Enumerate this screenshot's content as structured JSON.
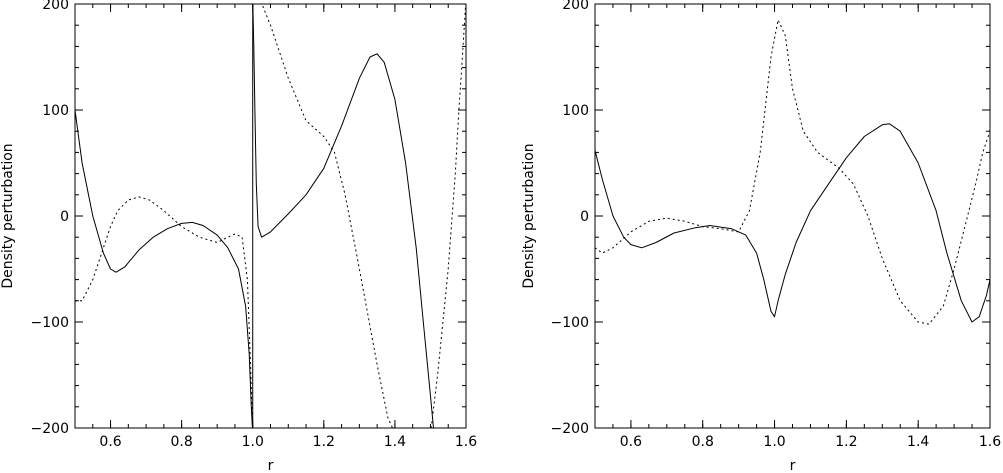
{
  "chart_data": [
    {
      "type": "line",
      "title": "",
      "xlabel": "r",
      "ylabel": "Density  perturbation",
      "xlim": [
        0.5,
        1.6
      ],
      "ylim": [
        -200,
        200
      ],
      "xticks": [
        0.6,
        0.8,
        1.0,
        1.2,
        1.4,
        1.6
      ],
      "xtick_labels": [
        "0.6",
        "0.8",
        "1.0",
        "1.2",
        "1.4",
        "1.6"
      ],
      "yticks": [
        200,
        100,
        0,
        -100,
        -200
      ],
      "ytick_labels": [
        "200",
        "100",
        "0",
        "−100",
        "−200"
      ],
      "grid": false,
      "legend": "none",
      "vlines": [
        1.0
      ],
      "series": [
        {
          "style": "solid",
          "segments": [
            [
              [
                0.5,
                100
              ],
              [
                0.52,
                50
              ],
              [
                0.55,
                0
              ],
              [
                0.58,
                -35
              ],
              [
                0.6,
                -50
              ],
              [
                0.615,
                -53
              ],
              [
                0.64,
                -48
              ],
              [
                0.68,
                -32
              ],
              [
                0.72,
                -20
              ],
              [
                0.76,
                -12
              ],
              [
                0.8,
                -7
              ],
              [
                0.83,
                -6
              ],
              [
                0.86,
                -9
              ],
              [
                0.9,
                -18
              ],
              [
                0.93,
                -30
              ],
              [
                0.96,
                -50
              ],
              [
                0.98,
                -85
              ],
              [
                0.99,
                -130
              ],
              [
                0.996,
                -180
              ],
              [
                1.0,
                -205
              ]
            ],
            [
              [
                1.0,
                205
              ],
              [
                1.003,
                160
              ],
              [
                1.006,
                100
              ],
              [
                1.01,
                30
              ],
              [
                1.015,
                -10
              ],
              [
                1.025,
                -20
              ],
              [
                1.05,
                -15
              ],
              [
                1.1,
                2
              ],
              [
                1.15,
                20
              ],
              [
                1.2,
                45
              ],
              [
                1.25,
                85
              ],
              [
                1.3,
                130
              ],
              [
                1.33,
                150
              ],
              [
                1.35,
                153
              ],
              [
                1.37,
                145
              ],
              [
                1.4,
                110
              ],
              [
                1.43,
                50
              ],
              [
                1.46,
                -30
              ],
              [
                1.48,
                -100
              ],
              [
                1.5,
                -170
              ],
              [
                1.51,
                -205
              ]
            ]
          ]
        },
        {
          "style": "dotted",
          "segments": [
            [
              [
                0.5,
                -80
              ],
              [
                0.52,
                -80
              ],
              [
                0.55,
                -60
              ],
              [
                0.58,
                -30
              ],
              [
                0.6,
                -10
              ],
              [
                0.62,
                5
              ],
              [
                0.65,
                15
              ],
              [
                0.68,
                18
              ],
              [
                0.71,
                15
              ],
              [
                0.75,
                5
              ],
              [
                0.8,
                -10
              ],
              [
                0.85,
                -20
              ],
              [
                0.9,
                -25
              ],
              [
                0.93,
                -20
              ],
              [
                0.95,
                -17
              ],
              [
                0.97,
                -20
              ],
              [
                0.985,
                -60
              ],
              [
                0.995,
                -150
              ],
              [
                1.0,
                -205
              ]
            ],
            [
              [
                1.0,
                205
              ],
              [
                1.01,
                205
              ],
              [
                1.02,
                205
              ],
              [
                1.05,
                180
              ],
              [
                1.1,
                130
              ],
              [
                1.15,
                90
              ],
              [
                1.2,
                75
              ],
              [
                1.23,
                60
              ],
              [
                1.26,
                20
              ],
              [
                1.3,
                -50
              ],
              [
                1.35,
                -140
              ],
              [
                1.38,
                -190
              ],
              [
                1.4,
                -205
              ]
            ],
            [
              [
                1.5,
                -205
              ],
              [
                1.52,
                -150
              ],
              [
                1.55,
                -50
              ],
              [
                1.57,
                40
              ],
              [
                1.58,
                100
              ],
              [
                1.59,
                150
              ],
              [
                1.6,
                205
              ]
            ]
          ]
        }
      ]
    },
    {
      "type": "line",
      "title": "",
      "xlabel": "r",
      "ylabel": "Density  perturbation",
      "xlim": [
        0.5,
        1.6
      ],
      "ylim": [
        -200,
        200
      ],
      "xticks": [
        0.6,
        0.8,
        1.0,
        1.2,
        1.4,
        1.6
      ],
      "xtick_labels": [
        "0.6",
        "0.8",
        "1.0",
        "1.2",
        "1.4",
        "1.6"
      ],
      "yticks": [
        200,
        100,
        0,
        -100,
        -200
      ],
      "ytick_labels": [
        "200",
        "100",
        "0",
        "−100",
        "−200"
      ],
      "grid": false,
      "legend": "none",
      "vlines": [],
      "series": [
        {
          "style": "solid",
          "segments": [
            [
              [
                0.5,
                62
              ],
              [
                0.52,
                35
              ],
              [
                0.55,
                0
              ],
              [
                0.58,
                -20
              ],
              [
                0.6,
                -27
              ],
              [
                0.63,
                -30
              ],
              [
                0.67,
                -25
              ],
              [
                0.72,
                -16
              ],
              [
                0.78,
                -11
              ],
              [
                0.82,
                -9
              ],
              [
                0.88,
                -12
              ],
              [
                0.92,
                -18
              ],
              [
                0.95,
                -35
              ],
              [
                0.97,
                -60
              ],
              [
                0.99,
                -90
              ],
              [
                1.0,
                -95
              ],
              [
                1.01,
                -80
              ],
              [
                1.03,
                -55
              ],
              [
                1.06,
                -25
              ],
              [
                1.1,
                5
              ],
              [
                1.15,
                30
              ],
              [
                1.2,
                55
              ],
              [
                1.25,
                75
              ],
              [
                1.3,
                86
              ],
              [
                1.32,
                87
              ],
              [
                1.35,
                80
              ],
              [
                1.4,
                50
              ],
              [
                1.45,
                5
              ],
              [
                1.48,
                -35
              ],
              [
                1.52,
                -80
              ],
              [
                1.55,
                -100
              ],
              [
                1.57,
                -95
              ],
              [
                1.59,
                -75
              ],
              [
                1.6,
                -60
              ]
            ]
          ]
        },
        {
          "style": "dotted",
          "segments": [
            [
              [
                0.5,
                -30
              ],
              [
                0.52,
                -35
              ],
              [
                0.55,
                -30
              ],
              [
                0.6,
                -15
              ],
              [
                0.65,
                -5
              ],
              [
                0.7,
                -2
              ],
              [
                0.75,
                -5
              ],
              [
                0.8,
                -10
              ],
              [
                0.85,
                -12
              ],
              [
                0.9,
                -15
              ],
              [
                0.93,
                5
              ],
              [
                0.96,
                60
              ],
              [
                0.99,
                150
              ],
              [
                1.01,
                185
              ],
              [
                1.03,
                170
              ],
              [
                1.05,
                120
              ],
              [
                1.08,
                80
              ],
              [
                1.12,
                60
              ],
              [
                1.18,
                45
              ],
              [
                1.22,
                30
              ],
              [
                1.26,
                0
              ],
              [
                1.3,
                -40
              ],
              [
                1.35,
                -80
              ],
              [
                1.4,
                -100
              ],
              [
                1.43,
                -102
              ],
              [
                1.47,
                -85
              ],
              [
                1.5,
                -50
              ],
              [
                1.53,
                -10
              ],
              [
                1.56,
                30
              ],
              [
                1.58,
                60
              ],
              [
                1.6,
                80
              ]
            ]
          ]
        }
      ]
    }
  ]
}
